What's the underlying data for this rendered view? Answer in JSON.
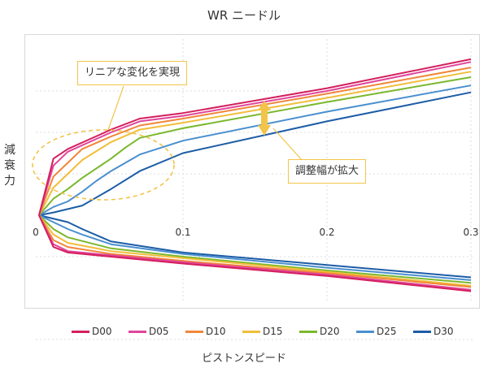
{
  "chart_data": {
    "type": "line",
    "title": "WR ニードル",
    "xlabel": "ピストンスピード",
    "ylabel": "減衰力",
    "xlim": [
      0,
      0.3
    ],
    "ylim": [
      -1,
      1.18
    ],
    "x_ticks": [
      "0",
      "0.1",
      "0.2",
      "0.3"
    ],
    "grid": true,
    "legend_position": "bottom",
    "series": [
      {
        "name": "D00",
        "color": "#d41f5e",
        "extension": [
          [
            0,
            0
          ],
          [
            0.01,
            0.41
          ],
          [
            0.02,
            0.48
          ],
          [
            0.05,
            0.62
          ],
          [
            0.07,
            0.7
          ],
          [
            0.1,
            0.74
          ],
          [
            0.2,
            0.92
          ],
          [
            0.3,
            1.13
          ]
        ],
        "compression": [
          [
            0,
            0
          ],
          [
            0.01,
            -0.23
          ],
          [
            0.02,
            -0.27
          ],
          [
            0.05,
            -0.3
          ],
          [
            0.1,
            -0.35
          ],
          [
            0.2,
            -0.44
          ],
          [
            0.3,
            -0.55
          ]
        ]
      },
      {
        "name": "D05",
        "color": "#e0459a",
        "extension": [
          [
            0,
            0
          ],
          [
            0.01,
            0.36
          ],
          [
            0.02,
            0.46
          ],
          [
            0.05,
            0.6
          ],
          [
            0.07,
            0.68
          ],
          [
            0.1,
            0.72
          ],
          [
            0.2,
            0.9
          ],
          [
            0.3,
            1.11
          ]
        ],
        "compression": [
          [
            0,
            0
          ],
          [
            0.01,
            -0.21
          ],
          [
            0.02,
            -0.26
          ],
          [
            0.05,
            -0.29
          ],
          [
            0.1,
            -0.34
          ],
          [
            0.2,
            -0.43
          ],
          [
            0.3,
            -0.54
          ]
        ]
      },
      {
        "name": "D10",
        "color": "#f0873a",
        "extension": [
          [
            0,
            0
          ],
          [
            0.01,
            0.28
          ],
          [
            0.02,
            0.38
          ],
          [
            0.03,
            0.48
          ],
          [
            0.05,
            0.57
          ],
          [
            0.07,
            0.65
          ],
          [
            0.1,
            0.7
          ],
          [
            0.2,
            0.88
          ],
          [
            0.3,
            1.07
          ]
        ],
        "compression": [
          [
            0,
            0
          ],
          [
            0.01,
            -0.18
          ],
          [
            0.02,
            -0.23
          ],
          [
            0.05,
            -0.28
          ],
          [
            0.1,
            -0.33
          ],
          [
            0.2,
            -0.42
          ],
          [
            0.3,
            -0.52
          ]
        ]
      },
      {
        "name": "D15",
        "color": "#f2bd3a",
        "extension": [
          [
            0,
            0
          ],
          [
            0.01,
            0.2
          ],
          [
            0.02,
            0.3
          ],
          [
            0.03,
            0.4
          ],
          [
            0.05,
            0.53
          ],
          [
            0.07,
            0.62
          ],
          [
            0.1,
            0.67
          ],
          [
            0.2,
            0.85
          ],
          [
            0.3,
            1.04
          ]
        ],
        "compression": [
          [
            0,
            0
          ],
          [
            0.01,
            -0.14
          ],
          [
            0.02,
            -0.2
          ],
          [
            0.05,
            -0.26
          ],
          [
            0.1,
            -0.31
          ],
          [
            0.2,
            -0.41
          ],
          [
            0.3,
            -0.51
          ]
        ]
      },
      {
        "name": "D20",
        "color": "#7ab82e",
        "extension": [
          [
            0,
            0
          ],
          [
            0.01,
            0.12
          ],
          [
            0.02,
            0.19
          ],
          [
            0.03,
            0.27
          ],
          [
            0.05,
            0.41
          ],
          [
            0.06,
            0.49
          ],
          [
            0.07,
            0.56
          ],
          [
            0.1,
            0.63
          ],
          [
            0.2,
            0.82
          ],
          [
            0.3,
            1.0
          ]
        ],
        "compression": [
          [
            0,
            0
          ],
          [
            0.01,
            -0.1
          ],
          [
            0.02,
            -0.16
          ],
          [
            0.05,
            -0.24
          ],
          [
            0.1,
            -0.3
          ],
          [
            0.2,
            -0.4
          ],
          [
            0.3,
            -0.49
          ]
        ]
      },
      {
        "name": "D25",
        "color": "#4a8fcf",
        "extension": [
          [
            0,
            0
          ],
          [
            0.01,
            0.06
          ],
          [
            0.02,
            0.1
          ],
          [
            0.03,
            0.17
          ],
          [
            0.04,
            0.25
          ],
          [
            0.05,
            0.32
          ],
          [
            0.07,
            0.44
          ],
          [
            0.1,
            0.54
          ],
          [
            0.2,
            0.75
          ],
          [
            0.3,
            0.94
          ]
        ],
        "compression": [
          [
            0,
            0
          ],
          [
            0.01,
            -0.05
          ],
          [
            0.02,
            -0.1
          ],
          [
            0.03,
            -0.14
          ],
          [
            0.05,
            -0.21
          ],
          [
            0.1,
            -0.28
          ],
          [
            0.2,
            -0.38
          ],
          [
            0.3,
            -0.47
          ]
        ]
      },
      {
        "name": "D30",
        "color": "#1c5ca6",
        "extension": [
          [
            0,
            0
          ],
          [
            0.01,
            0.02
          ],
          [
            0.03,
            0.07
          ],
          [
            0.05,
            0.19
          ],
          [
            0.07,
            0.32
          ],
          [
            0.1,
            0.45
          ],
          [
            0.2,
            0.68
          ],
          [
            0.3,
            0.89
          ]
        ],
        "compression": [
          [
            0,
            0
          ],
          [
            0.02,
            -0.05
          ],
          [
            0.03,
            -0.1
          ],
          [
            0.05,
            -0.19
          ],
          [
            0.1,
            -0.27
          ],
          [
            0.2,
            -0.36
          ],
          [
            0.3,
            -0.45
          ]
        ]
      }
    ],
    "annotations": [
      "リニアな変化を実現",
      "調整幅が拡大"
    ]
  },
  "colors": {
    "callout_border": "#f2c44a",
    "arrow": "#f2c44a",
    "grid": "#dddddd"
  }
}
